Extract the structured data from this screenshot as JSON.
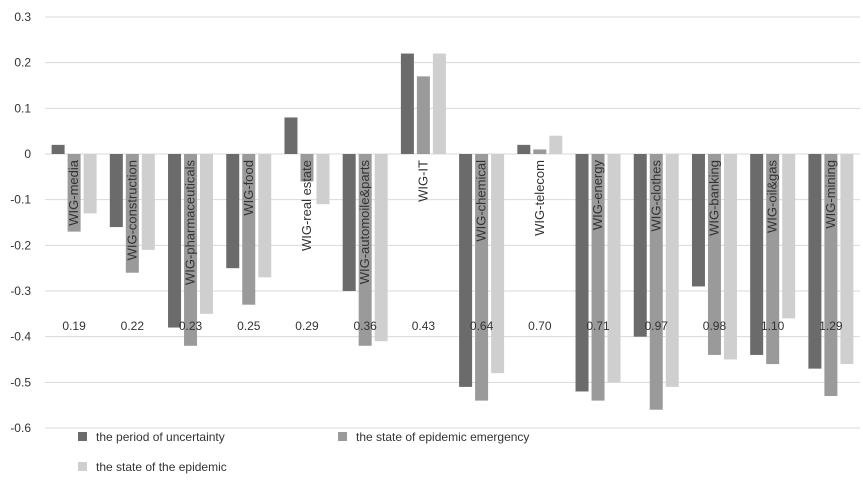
{
  "chart_data": {
    "type": "bar",
    "categories": [
      "WIG-media",
      "WIG-construction",
      "WIG-pharmaceuticals",
      "WIG-food",
      "WIG-real estate",
      "WIG-automoile&parts",
      "WIG-IT",
      "WIG-chemical",
      "WIG-telecom",
      "WIG-energy",
      "WIG-clothes",
      "WIG-banking",
      "WIG-oil&gas",
      "WIG-mining"
    ],
    "category_values": [
      "0.19",
      "0.22",
      "0.23",
      "0.25",
      "0.29",
      "0.36",
      "0.43",
      "0.64",
      "0.70",
      "0.71",
      "0.97",
      "0.98",
      "1.10",
      "1.29"
    ],
    "series": [
      {
        "name": "the period of uncertainty",
        "color": "#6b6b6b",
        "values": [
          0.02,
          -0.16,
          -0.38,
          -0.25,
          0.08,
          -0.3,
          0.22,
          -0.51,
          0.02,
          -0.52,
          -0.4,
          -0.29,
          -0.44,
          -0.47
        ]
      },
      {
        "name": "the state of epidemic emergency",
        "color": "#9a9a9a",
        "values": [
          -0.17,
          -0.26,
          -0.42,
          -0.33,
          -0.06,
          -0.42,
          0.17,
          -0.54,
          0.01,
          -0.54,
          -0.56,
          -0.44,
          -0.46,
          -0.53
        ]
      },
      {
        "name": "the state of the epidemic",
        "color": "#cfcfcf",
        "values": [
          -0.13,
          -0.21,
          -0.35,
          -0.27,
          -0.11,
          -0.41,
          0.22,
          -0.48,
          0.04,
          -0.5,
          -0.51,
          -0.45,
          -0.36,
          -0.46
        ]
      }
    ],
    "yticks": [
      "0.3",
      "0.2",
      "0.1",
      "0",
      "-0.1",
      "-0.2",
      "-0.3",
      "-0.4",
      "-0.5",
      "-0.6"
    ],
    "ylim": [
      -0.6,
      0.3
    ],
    "legend_position": "bottom-left",
    "grid": true
  }
}
